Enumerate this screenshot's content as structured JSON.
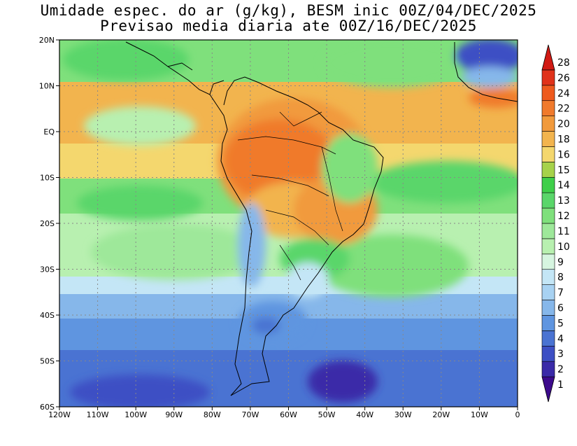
{
  "title_line1": "Umidade espec. do ar (g/kg), BESM inic 00Z/04/DEC/2025",
  "title_line2": "Previsao media diaria ate 00Z/16/DEC/2025",
  "lat_labels": [
    "20N",
    "10N",
    "EQ",
    "10S",
    "20S",
    "30S",
    "40S",
    "50S",
    "60S"
  ],
  "lon_labels": [
    "120W",
    "110W",
    "100W",
    "90W",
    "80W",
    "70W",
    "60W",
    "50W",
    "40W",
    "30W",
    "20W",
    "10W",
    "0"
  ],
  "legend_levels": [
    "1",
    "2",
    "3",
    "4",
    "5",
    "6",
    "7",
    "8",
    "9",
    "10",
    "11",
    "12",
    "13",
    "14",
    "15",
    "16",
    "18",
    "20",
    "22",
    "24",
    "26",
    "28"
  ],
  "legend_colors": [
    "#3c0a8c",
    "#3a2aa8",
    "#3d4fc4",
    "#4a73d2",
    "#5f95e0",
    "#86b7ea",
    "#a8d2f2",
    "#c4e6f6",
    "#d6f5e0",
    "#b8f0b0",
    "#9ee89a",
    "#7fe07c",
    "#5ad66a",
    "#3fcf4a",
    "#a6d24a",
    "#f4d76e",
    "#f2b44e",
    "#f19a3c",
    "#f07a2c",
    "#ee5a1e",
    "#e0321a",
    "#d11a14"
  ]
}
